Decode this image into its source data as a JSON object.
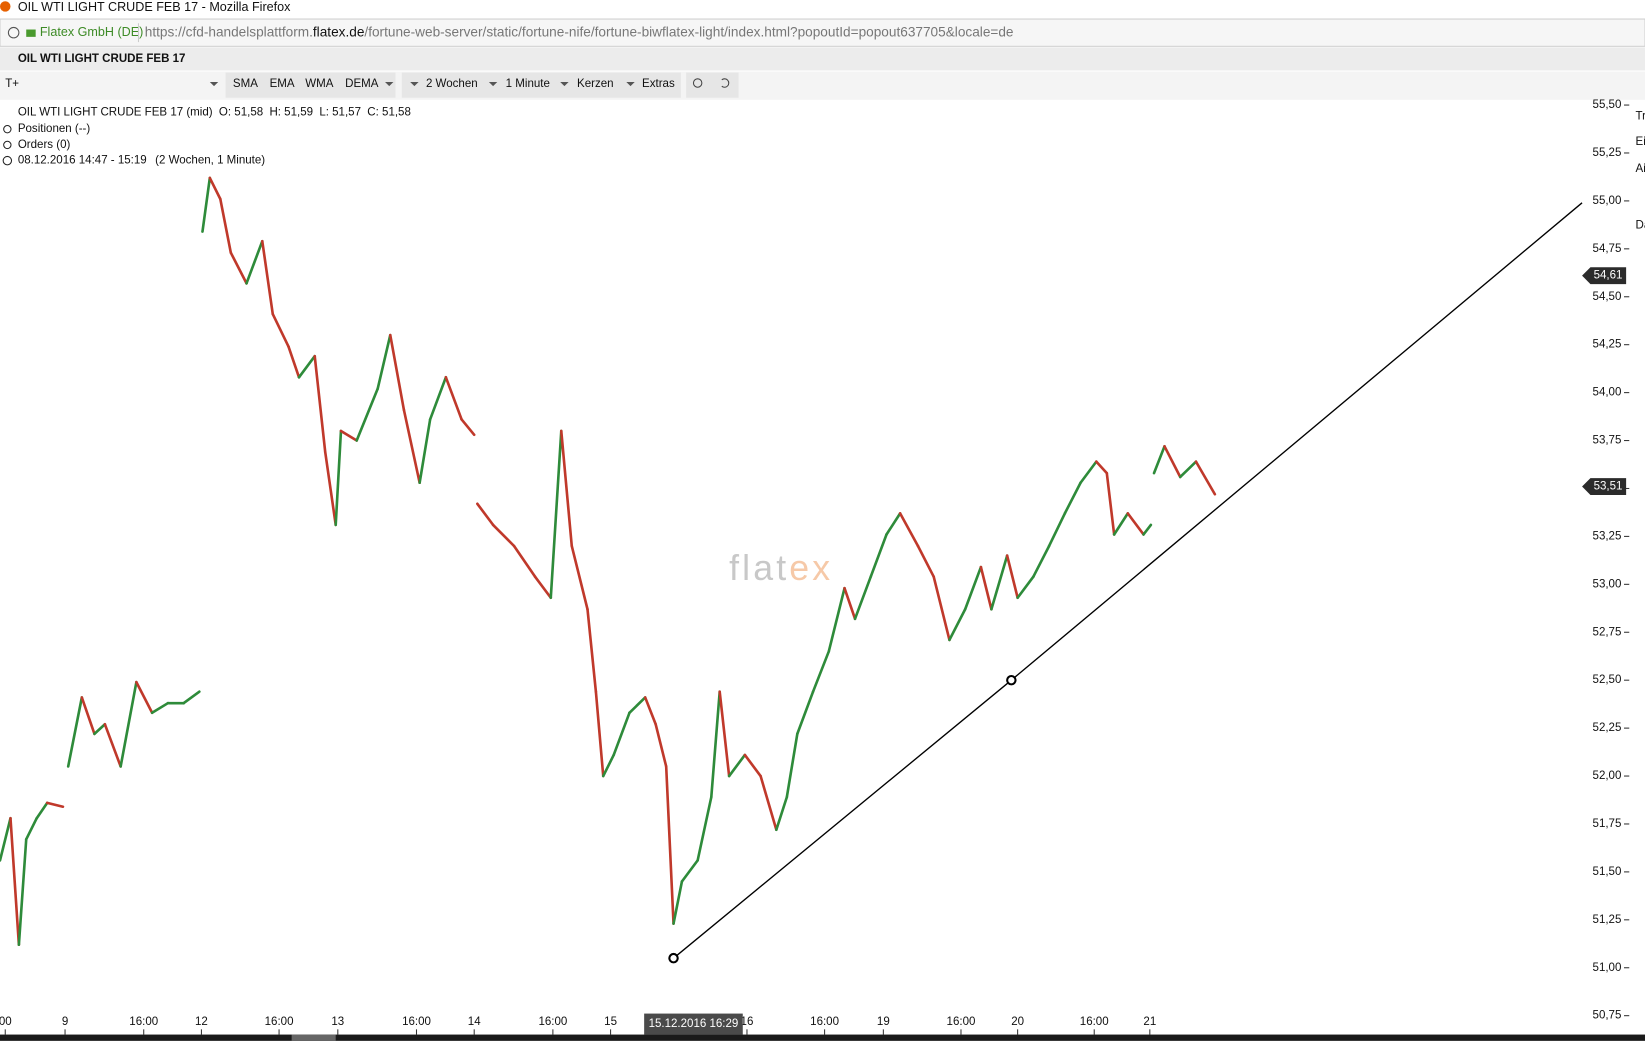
{
  "window": {
    "title": "OIL WTI LIGHT CRUDE FEB 17 - Mozilla Firefox"
  },
  "address_bar": {
    "site": "Flatex GmbH (DE)",
    "url_prefix": "https://cfd-handelsplattform.",
    "url_domain": "flatex.de",
    "url_suffix": "/fortune-web-server/static/fortune-nife/fortune-biwflatex-light/index.html?popoutId=popout637705&locale=de"
  },
  "tab": {
    "title": "OIL WTI LIGHT CRUDE FEB 17"
  },
  "toolbar": {
    "indicators": [
      "SMA",
      "EMA",
      "WMA",
      "DEMA"
    ],
    "period": "2 Wochen",
    "interval": "1 Minute",
    "chart_style": "Kerzen",
    "extras": "Extras"
  },
  "info": {
    "instrument": "OIL WTI LIGHT CRUDE FEB 17 (mid)",
    "open": "O: 51,58",
    "high": "H: 51,59",
    "low": "L: 51,57",
    "close": "C: 51,58",
    "positions": "Positionen (--)",
    "orders": "Orders (0)",
    "range": "08.12.2016 14:47 - 15:19",
    "range_detail": "(2 Wochen, 1 Minute)"
  },
  "watermark": {
    "left": "flat",
    "right": "ex"
  },
  "side_panel": {
    "labels": [
      "Tr",
      "Ei",
      "Ai",
      "Da"
    ]
  },
  "chart_data": {
    "type": "line",
    "up_color": "#2e8b3a",
    "down_color": "#c0392b",
    "x": [
      0,
      2,
      3.6,
      5,
      7,
      9,
      12,
      12.4,
      13,
      15.6,
      18,
      20,
      23,
      26,
      29,
      32,
      35,
      38,
      38.2,
      38.6,
      40,
      42,
      44,
      47,
      50,
      52,
      55,
      57,
      60,
      62,
      64,
      65,
      68,
      72,
      74.4,
      77,
      80,
      82,
      85,
      88,
      90.4,
      90.6,
      91,
      94,
      98,
      102,
      105,
      107,
      109,
      112,
      113.6,
      115,
      117,
      120,
      123,
      125,
      127,
      128.4,
      130,
      133,
      135.6,
      137.2,
      139,
      142,
      145,
      148,
      150,
      152,
      155,
      158,
      161,
      163,
      166,
      169,
      171.6,
      175,
      178,
      181,
      184,
      187,
      189,
      192,
      194,
      197,
      200,
      203,
      206,
      209,
      211,
      212.4,
      215,
      218,
      219.4,
      219.6,
      220,
      222,
      225,
      228,
      231.6
    ],
    "series": [
      {
        "values": [
          51.56,
          51.78,
          51.12,
          51.67,
          51.78,
          51.86,
          51.84,
          null,
          52.05,
          52.41,
          52.22,
          52.27,
          52.05,
          52.49,
          52.33,
          52.38,
          52.38,
          52.44,
          null,
          54.84,
          55.12,
          55.01,
          54.73,
          54.57,
          54.79,
          54.41,
          54.24,
          54.08,
          54.19,
          53.69,
          53.31,
          53.8,
          53.75,
          54.02,
          54.3,
          53.91,
          53.53,
          53.86,
          54.08,
          53.86,
          53.78,
          null,
          53.42,
          53.31,
          53.2,
          53.04,
          52.93,
          53.8,
          53.2,
          52.87,
          52.44,
          52.0,
          52.11,
          52.33,
          52.41,
          52.27,
          52.05,
          51.23,
          51.45,
          51.56,
          51.89,
          52.44,
          52.0,
          52.11,
          52.0,
          51.72,
          51.89,
          52.22,
          52.44,
          52.65,
          52.98,
          52.82,
          53.04,
          53.26,
          53.37,
          53.2,
          53.04,
          52.71,
          52.87,
          53.09,
          52.87,
          53.15,
          52.93,
          53.04,
          53.2,
          53.37,
          53.53,
          53.64,
          53.58,
          53.26,
          53.37,
          53.26,
          53.31,
          null,
          53.58,
          53.72,
          53.56,
          53.64,
          53.47
        ]
      }
    ],
    "trendline": {
      "color": "#000000",
      "x": [
        128.4,
        192.8,
        301.6
      ],
      "values": [
        51.05,
        52.5,
        54.99
      ],
      "handles": [
        0,
        1
      ]
    },
    "price_markers": {
      "values": [
        54.61,
        53.51
      ],
      "value_labels": [
        "54,61",
        "53,51"
      ]
    },
    "crosshair": {
      "x": 132.2,
      "label": "15.12.2016 16:29"
    },
    "xlim": [
      0,
      301.6
    ],
    "xticks": [
      {
        "value": 1,
        "label": "00"
      },
      {
        "value": 12.4,
        "label": "9"
      },
      {
        "value": 27.4,
        "label": "16:00"
      },
      {
        "value": 38.4,
        "label": "12"
      },
      {
        "value": 53.2,
        "label": "16:00"
      },
      {
        "value": 64.4,
        "label": "13"
      },
      {
        "value": 79.4,
        "label": "16:00"
      },
      {
        "value": 90.4,
        "label": "14"
      },
      {
        "value": 105.4,
        "label": "16:00"
      },
      {
        "value": 116.4,
        "label": "15"
      },
      {
        "value": 142.4,
        "label": "16"
      },
      {
        "value": 157.2,
        "label": "16:00"
      },
      {
        "value": 168.4,
        "label": "19"
      },
      {
        "value": 183.2,
        "label": "16:00"
      },
      {
        "value": 194,
        "label": "20"
      },
      {
        "value": 208.6,
        "label": "16:00"
      },
      {
        "value": 219.2,
        "label": "21"
      }
    ],
    "ylim": [
      50.75,
      55.5
    ],
    "yticks": [
      {
        "value": 55.5,
        "label": "55,50"
      },
      {
        "value": 55.25,
        "label": "55,25"
      },
      {
        "value": 55,
        "label": "55,00"
      },
      {
        "value": 54.75,
        "label": "54,75"
      },
      {
        "value": 54.5,
        "label": "54,50"
      },
      {
        "value": 54.25,
        "label": "54,25"
      },
      {
        "value": 54,
        "label": "54,00"
      },
      {
        "value": 53.75,
        "label": "53,75"
      },
      {
        "value": 53.5,
        "label": "53,50"
      },
      {
        "value": 53.25,
        "label": "53,25"
      },
      {
        "value": 53,
        "label": "53,00"
      },
      {
        "value": 52.75,
        "label": "52,75"
      },
      {
        "value": 52.5,
        "label": "52,50"
      },
      {
        "value": 52.25,
        "label": "52,25"
      },
      {
        "value": 52,
        "label": "52,00"
      },
      {
        "value": 51.75,
        "label": "51,75"
      },
      {
        "value": 51.5,
        "label": "51,50"
      },
      {
        "value": 51.25,
        "label": "51,25"
      },
      {
        "value": 51,
        "label": "51,00"
      },
      {
        "value": 50.75,
        "label": "50,75"
      }
    ]
  }
}
